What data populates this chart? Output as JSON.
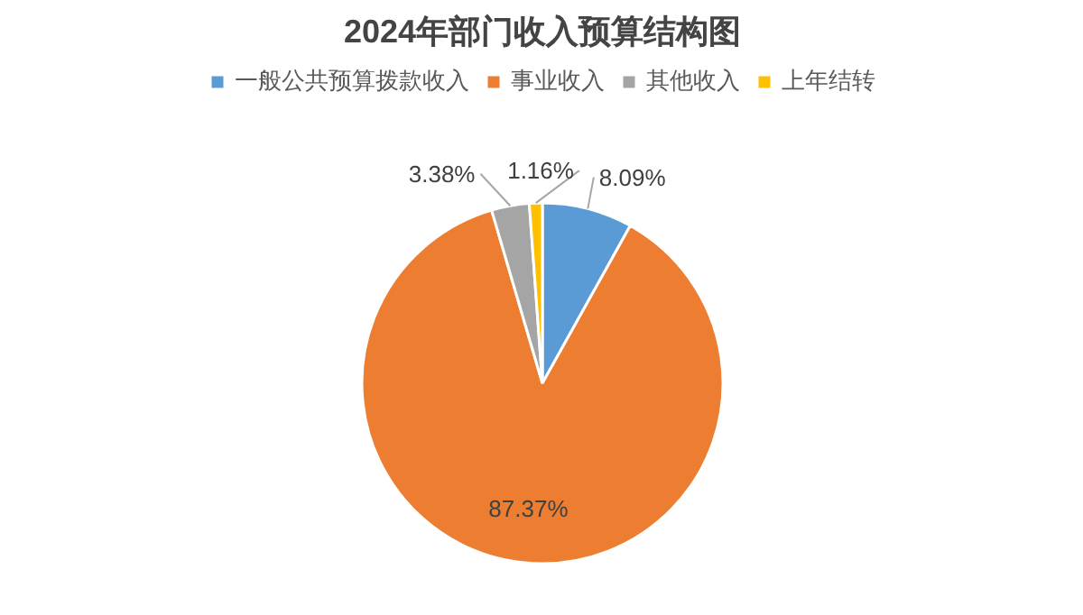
{
  "chart_data": {
    "type": "pie",
    "title": "2024年部门收入预算结构图",
    "legend": "top",
    "categories": [
      "一般公共预算拨款收入",
      "事业收入",
      "其他收入",
      "上年结转"
    ],
    "values": [
      8.09,
      87.37,
      3.38,
      1.16
    ],
    "colors": [
      "#5b9bd5",
      "#ed7d31",
      "#a5a5a5",
      "#ffc000"
    ],
    "value_labels": [
      "8.09%",
      "87.37%",
      "3.38%",
      "1.16%"
    ]
  }
}
